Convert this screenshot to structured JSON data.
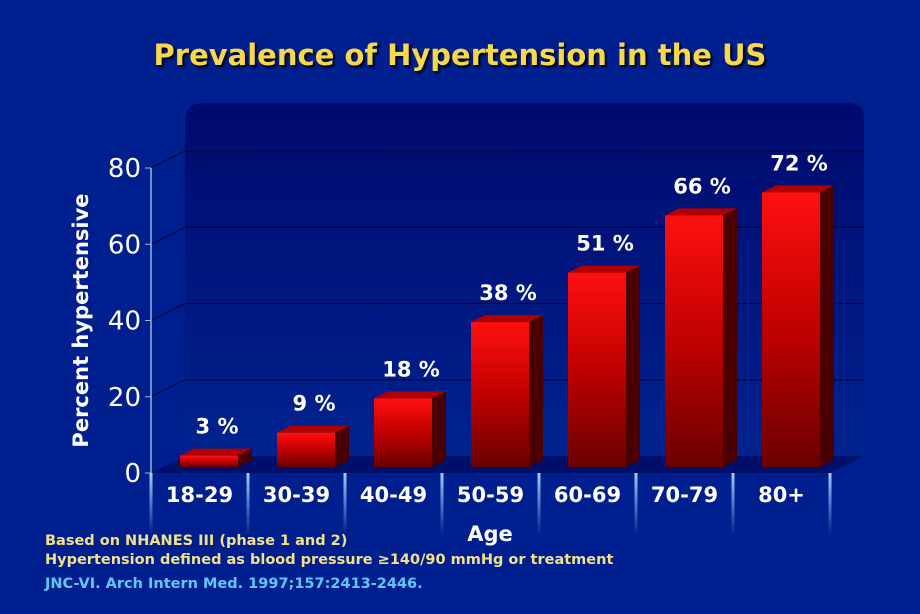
{
  "chart_data": {
    "type": "bar",
    "title": "Prevalence of Hypertension in the US",
    "xlabel": "Age",
    "ylabel": "Percent hypertensive",
    "categories": [
      "18-29",
      "30-39",
      "40-49",
      "50-59",
      "60-69",
      "70-79",
      "80+"
    ],
    "values": [
      3,
      9,
      18,
      38,
      51,
      66,
      72
    ],
    "data_labels": [
      "3 %",
      "9 %",
      "18 %",
      "38 %",
      "51 %",
      "66 %",
      "72 %"
    ],
    "ylim": [
      0,
      80
    ],
    "yticks": [
      "0",
      "20",
      "40",
      "60",
      "80"
    ],
    "grid": true,
    "style": "3d",
    "colors": {
      "bar": "#ff0000",
      "background": "#001f8f",
      "title": "#f6d84a"
    }
  },
  "footnotes": {
    "line1": "Based on NHANES III (phase 1 and 2)",
    "line2": "Hypertension defined as blood pressure ≥140/90 mmHg or treatment",
    "citation": "JNC-VI. Arch Intern Med. 1997;157:2413-2446."
  }
}
